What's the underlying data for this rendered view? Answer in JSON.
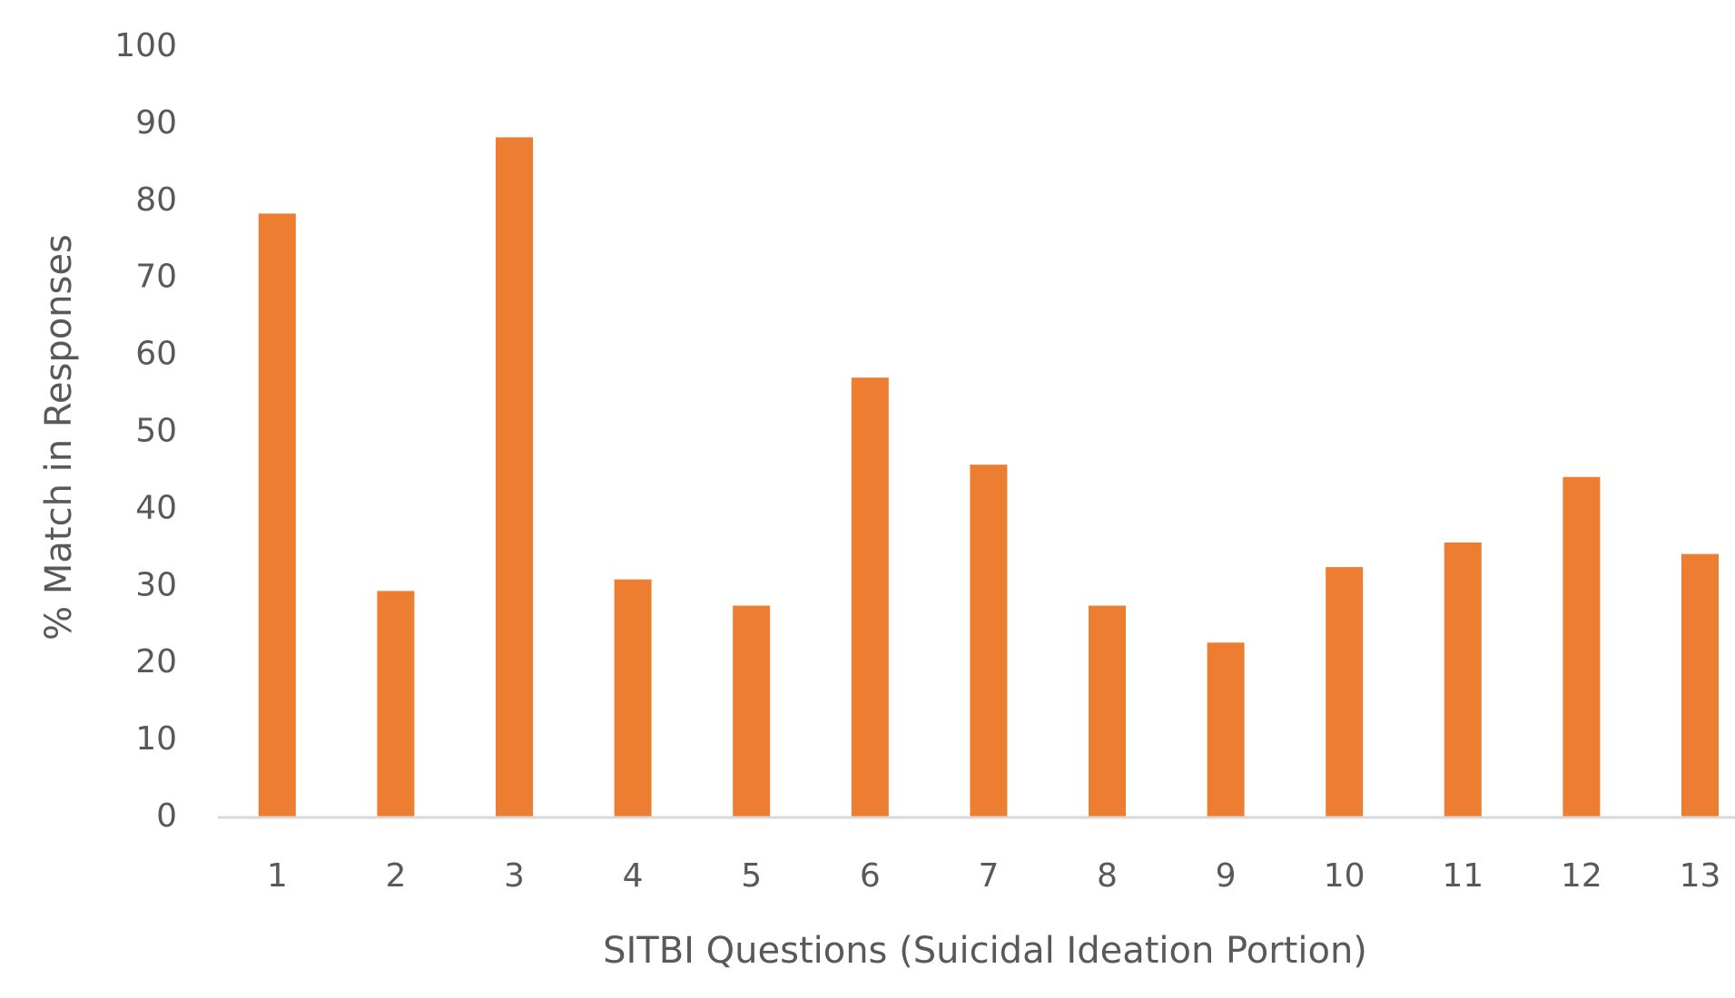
{
  "chart_data": {
    "type": "bar",
    "xlabel": "SITBI Questions (Suicidal Ideation Portion)",
    "ylabel": "% Match in Responses",
    "categories": [
      "1",
      "2",
      "3",
      "4",
      "5",
      "6",
      "7",
      "8",
      "9",
      "10",
      "11",
      "12",
      "13"
    ],
    "values": [
      78.4,
      29.4,
      88.3,
      30.9,
      27.5,
      57.1,
      45.8,
      27.5,
      22.7,
      32.5,
      35.7,
      44.2,
      34.2
    ],
    "color": "#ed7d31",
    "ylim": [
      0,
      100
    ],
    "yticks": [
      0,
      10,
      20,
      30,
      40,
      50,
      60,
      70,
      80,
      90,
      100
    ],
    "grid": false
  }
}
